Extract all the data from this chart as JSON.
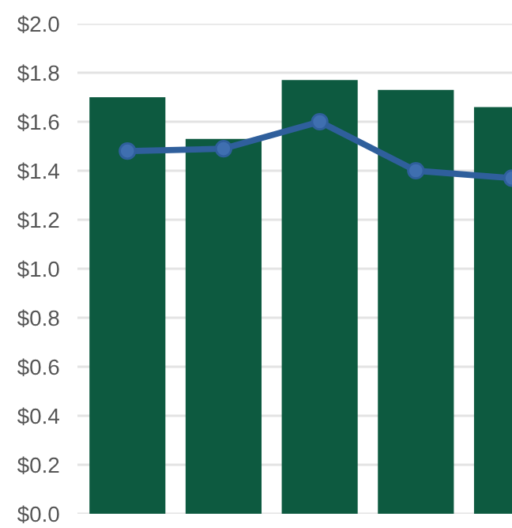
{
  "chart_data": {
    "type": "bar",
    "categories": [
      null,
      null,
      null,
      null,
      null
    ],
    "series": [
      {
        "color": "#0d5a40",
        "values": [
          1.7,
          1.53,
          1.77,
          1.73,
          1.66
        ]
      },
      {
        "type": "line",
        "color": "#2f5f9c",
        "values": [
          1.48,
          1.49,
          1.6,
          1.4,
          1.37
        ],
        "marker": "circle",
        "line_style": "solid"
      }
    ],
    "ylim": [
      0,
      2.0
    ],
    "yticks": [
      {
        "value": 0,
        "label": "$0.0"
      },
      {
        "value": 0.2,
        "label": "$0.2"
      },
      {
        "value": 0.4,
        "label": "$0.4"
      },
      {
        "value": 0.6,
        "label": "$0.6"
      },
      {
        "value": 0.8,
        "label": "$0.8"
      },
      {
        "value": 1.0,
        "label": "$1.0"
      },
      {
        "value": 1.2,
        "label": "$1.2"
      },
      {
        "value": 1.4,
        "label": "$1.4"
      },
      {
        "value": 1.6,
        "label": "$1.6"
      },
      {
        "value": 1.8,
        "label": "$1.8"
      },
      {
        "value": 2.0,
        "label": "$2.0"
      }
    ],
    "grid": "y",
    "legend": false
  }
}
